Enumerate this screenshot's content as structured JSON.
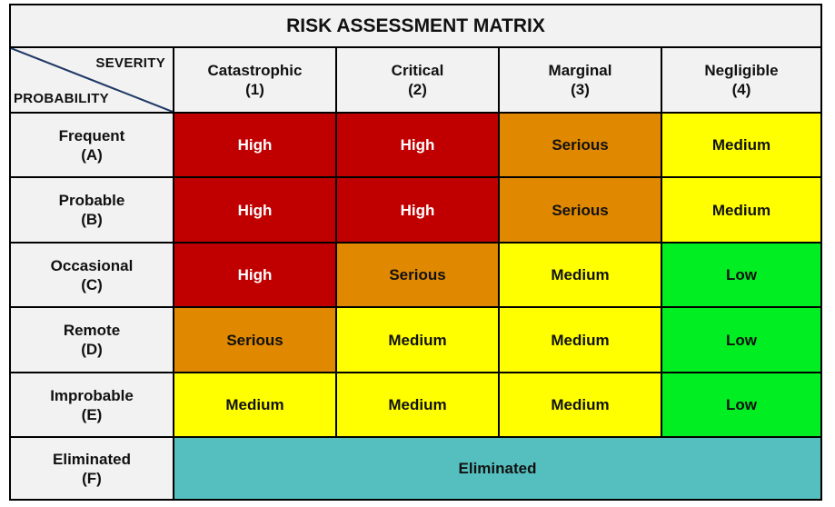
{
  "title": "RISK ASSESSMENT MATRIX",
  "corner": {
    "severity_label": "SEVERITY",
    "probability_label": "PROBABILITY"
  },
  "severity": [
    {
      "name": "Catastrophic",
      "code": "(1)"
    },
    {
      "name": "Critical",
      "code": "(2)"
    },
    {
      "name": "Marginal",
      "code": "(3)"
    },
    {
      "name": "Negligible",
      "code": "(4)"
    }
  ],
  "probability": [
    {
      "name": "Frequent",
      "code": "(A)"
    },
    {
      "name": "Probable",
      "code": "(B)"
    },
    {
      "name": "Occasional",
      "code": "(C)"
    },
    {
      "name": "Remote",
      "code": "(D)"
    },
    {
      "name": "Improbable",
      "code": "(E)"
    },
    {
      "name": "Eliminated",
      "code": "(F)"
    }
  ],
  "cells": [
    [
      "High",
      "High",
      "Serious",
      "Medium"
    ],
    [
      "High",
      "High",
      "Serious",
      "Medium"
    ],
    [
      "High",
      "Serious",
      "Medium",
      "Low"
    ],
    [
      "Serious",
      "Medium",
      "Medium",
      "Low"
    ],
    [
      "Medium",
      "Medium",
      "Medium",
      "Low"
    ]
  ],
  "eliminated_row_label": "Eliminated",
  "colors": {
    "High": "#c00000",
    "Serious": "#e08800",
    "Medium": "#ffff00",
    "Low": "#00ee22",
    "Eliminated": "#55bfbf",
    "header_bg": "#f2f2f2",
    "corner_line": "#1f3864"
  }
}
